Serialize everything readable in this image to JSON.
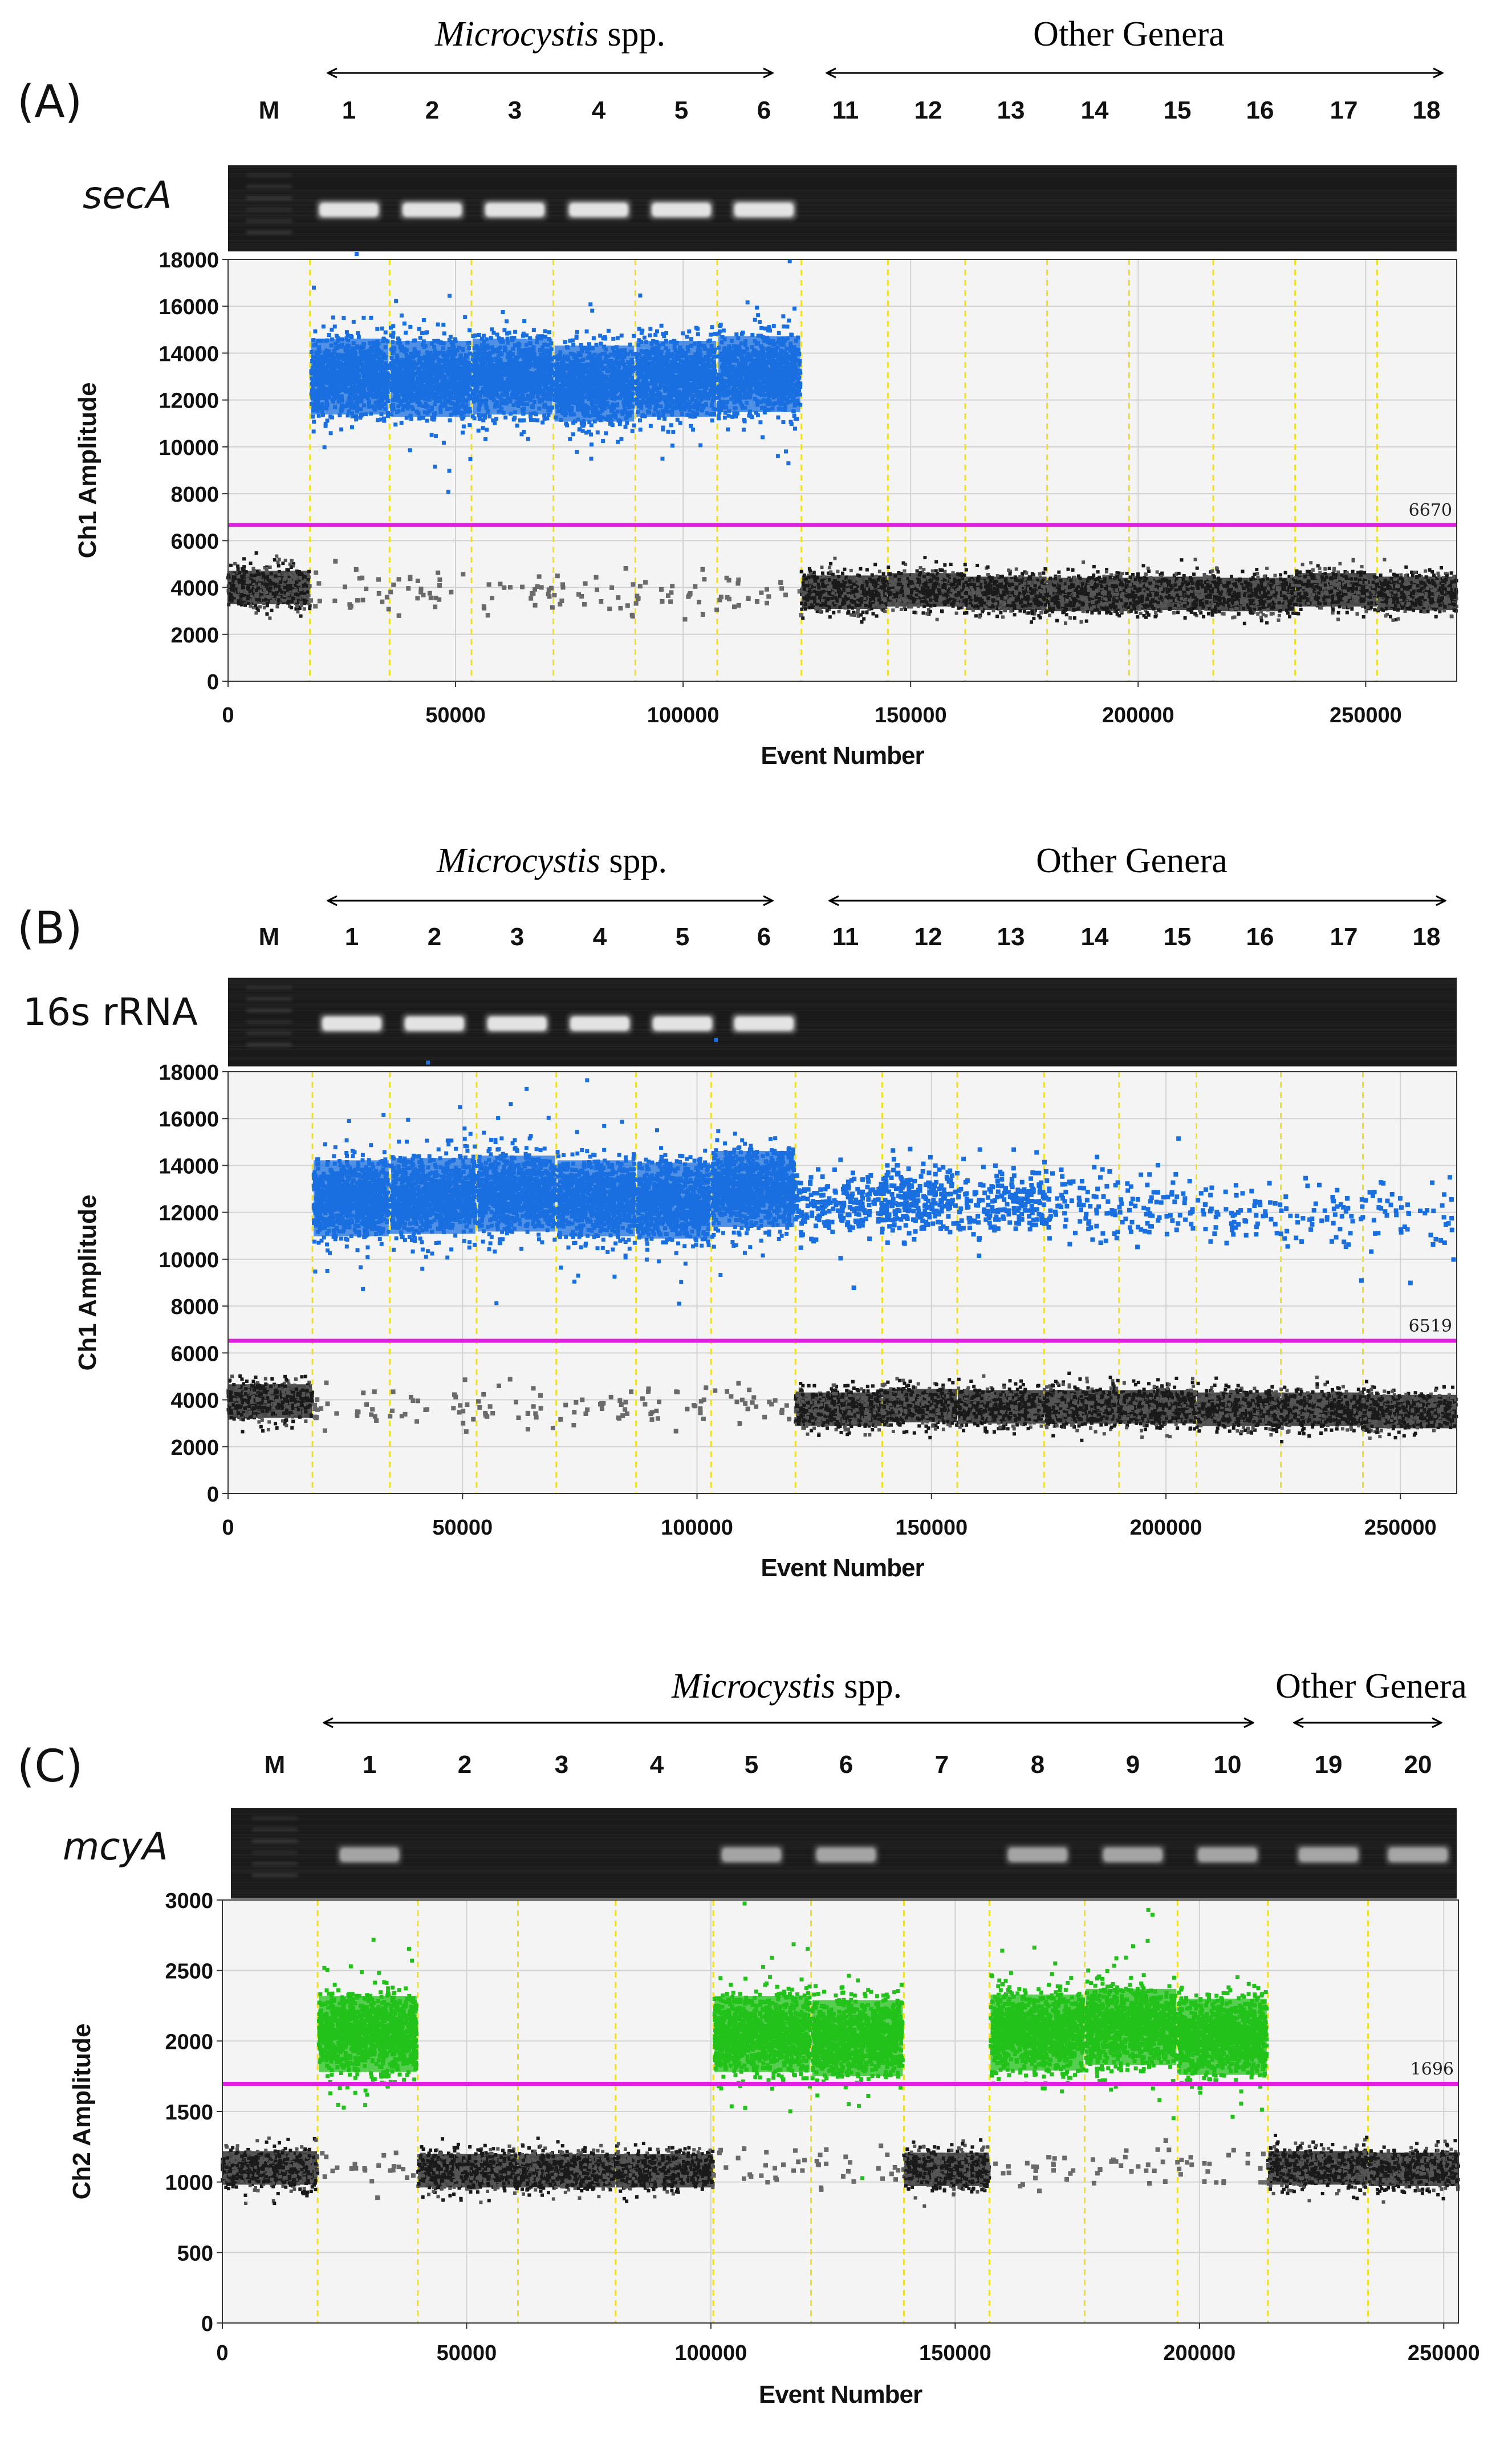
{
  "figure": {
    "panels": [
      {
        "id": "A",
        "label": "(A)",
        "gene": "secA",
        "gene_italic": true,
        "group_left": {
          "name": "Microcystis",
          "suffix": " spp."
        },
        "group_right": {
          "name": "Other Genera"
        },
        "lanes": [
          "M",
          "1",
          "2",
          "3",
          "4",
          "5",
          "6",
          "11",
          "12",
          "13",
          "14",
          "15",
          "16",
          "17",
          "18"
        ],
        "gel_bands": [
          false,
          true,
          true,
          true,
          true,
          true,
          true,
          false,
          false,
          false,
          false,
          false,
          false,
          false,
          false
        ],
        "band_strength": [
          0,
          1,
          1,
          1,
          1,
          1,
          1.2,
          0,
          0,
          0,
          0,
          0,
          0,
          0,
          0
        ]
      },
      {
        "id": "B",
        "label": "(B)",
        "gene": "16s rRNA",
        "gene_italic": false,
        "group_left": {
          "name": "Microcystis",
          "suffix": " spp."
        },
        "group_right": {
          "name": "Other Genera"
        },
        "lanes": [
          "M",
          "1",
          "2",
          "3",
          "4",
          "5",
          "6",
          "11",
          "12",
          "13",
          "14",
          "15",
          "16",
          "17",
          "18"
        ],
        "gel_bands": [
          false,
          true,
          true,
          true,
          true,
          true,
          true,
          false,
          false,
          false,
          false,
          false,
          false,
          false,
          false
        ],
        "band_strength": [
          0,
          1,
          1,
          1,
          1,
          1,
          1.2,
          0,
          0,
          0,
          0,
          0,
          0,
          0,
          0
        ]
      },
      {
        "id": "C",
        "label": "(C)",
        "gene": "mcyA",
        "gene_italic": true,
        "group_left": {
          "name": "Microcystis",
          "suffix": " spp."
        },
        "group_right": {
          "name": "Other Genera"
        },
        "lanes": [
          "M",
          "1",
          "2",
          "3",
          "4",
          "5",
          "6",
          "7",
          "8",
          "9",
          "10",
          "19",
          "20"
        ],
        "gel_bands": [
          false,
          true,
          false,
          false,
          false,
          true,
          true,
          false,
          true,
          true,
          true,
          true,
          true
        ],
        "band_strength": [
          0,
          0.7,
          0,
          0,
          0,
          0.7,
          0.7,
          0,
          0.7,
          0.7,
          0.7,
          0.8,
          0.8
        ]
      }
    ]
  },
  "chart_data": [
    {
      "type": "scatter",
      "panel": "A",
      "xlabel": "Event Number",
      "ylabel": "Ch1 Amplitude",
      "xlim": [
        0,
        270000
      ],
      "ylim": [
        0,
        18000
      ],
      "xticks": [
        0,
        50000,
        100000,
        150000,
        200000,
        250000
      ],
      "yticks": [
        0,
        2000,
        4000,
        6000,
        8000,
        10000,
        12000,
        14000,
        16000,
        18000
      ],
      "threshold": 6670,
      "threshold_label": "6670",
      "positive_color": "#1a6fe0",
      "negative_color": "#222222",
      "threshold_color": "#e020e0",
      "well_boundaries": [
        18000,
        35500,
        53500,
        71500,
        89500,
        107500,
        126000,
        145000,
        162000,
        180000,
        198000,
        216500,
        234500,
        252500,
        270000
      ],
      "wells": [
        {
          "start": 0,
          "end": 18000,
          "positive": false,
          "pos_level": 0,
          "neg_level": 4000
        },
        {
          "start": 18000,
          "end": 35500,
          "positive": true,
          "pos_level": 13000,
          "neg_level": 3700
        },
        {
          "start": 35500,
          "end": 53500,
          "positive": true,
          "pos_level": 12900,
          "neg_level": 3700
        },
        {
          "start": 53500,
          "end": 71500,
          "positive": true,
          "pos_level": 13000,
          "neg_level": 3700
        },
        {
          "start": 71500,
          "end": 89500,
          "positive": true,
          "pos_level": 12700,
          "neg_level": 3700
        },
        {
          "start": 89500,
          "end": 107500,
          "positive": true,
          "pos_level": 12900,
          "neg_level": 3700
        },
        {
          "start": 107500,
          "end": 126000,
          "positive": true,
          "pos_level": 13100,
          "neg_level": 3700
        },
        {
          "start": 126000,
          "end": 145000,
          "positive": false,
          "pos_level": 0,
          "neg_level": 3800
        },
        {
          "start": 145000,
          "end": 162000,
          "positive": false,
          "pos_level": 0,
          "neg_level": 3900
        },
        {
          "start": 162000,
          "end": 180000,
          "positive": false,
          "pos_level": 0,
          "neg_level": 3750
        },
        {
          "start": 180000,
          "end": 198000,
          "positive": false,
          "pos_level": 0,
          "neg_level": 3700
        },
        {
          "start": 198000,
          "end": 216500,
          "positive": false,
          "pos_level": 0,
          "neg_level": 3750
        },
        {
          "start": 216500,
          "end": 234500,
          "positive": false,
          "pos_level": 0,
          "neg_level": 3700
        },
        {
          "start": 234500,
          "end": 252500,
          "positive": false,
          "pos_level": 0,
          "neg_level": 3900
        },
        {
          "start": 252500,
          "end": 270000,
          "positive": false,
          "pos_level": 0,
          "neg_level": 3750
        }
      ]
    },
    {
      "type": "scatter",
      "panel": "B",
      "xlabel": "Event Number",
      "ylabel": "Ch1 Amplitude",
      "xlim": [
        0,
        262000
      ],
      "ylim": [
        0,
        18000
      ],
      "xticks": [
        0,
        50000,
        100000,
        150000,
        200000,
        250000
      ],
      "yticks": [
        0,
        2000,
        4000,
        6000,
        8000,
        10000,
        12000,
        14000,
        16000,
        18000
      ],
      "threshold": 6519,
      "threshold_label": "6519",
      "positive_color": "#1a6fe0",
      "negative_color": "#222222",
      "threshold_color": "#e020e0",
      "well_boundaries": [
        18000,
        34500,
        53000,
        70000,
        87000,
        103000,
        121000,
        139500,
        155500,
        174000,
        190000,
        206500,
        224500,
        242000,
        262000
      ],
      "wells": [
        {
          "start": 0,
          "end": 18000,
          "positive": false,
          "pos_level": 0,
          "neg_level": 3950,
          "sparse_pos": 0
        },
        {
          "start": 18000,
          "end": 34500,
          "positive": true,
          "pos_level": 12600,
          "neg_level": 3600,
          "sparse_pos": 0
        },
        {
          "start": 34500,
          "end": 53000,
          "positive": true,
          "pos_level": 12700,
          "neg_level": 3600,
          "sparse_pos": 0
        },
        {
          "start": 53000,
          "end": 70000,
          "positive": true,
          "pos_level": 12800,
          "neg_level": 3600,
          "sparse_pos": 0
        },
        {
          "start": 70000,
          "end": 87000,
          "positive": true,
          "pos_level": 12600,
          "neg_level": 3700,
          "sparse_pos": 0
        },
        {
          "start": 87000,
          "end": 103000,
          "positive": true,
          "pos_level": 12500,
          "neg_level": 3700,
          "sparse_pos": 0
        },
        {
          "start": 103000,
          "end": 121000,
          "positive": true,
          "pos_level": 13000,
          "neg_level": 3600,
          "sparse_pos": 0
        },
        {
          "start": 121000,
          "end": 139500,
          "positive": false,
          "pos_level": 12300,
          "neg_level": 3600,
          "sparse_pos": 220
        },
        {
          "start": 139500,
          "end": 155500,
          "positive": false,
          "pos_level": 12500,
          "neg_level": 3750,
          "sparse_pos": 260
        },
        {
          "start": 155500,
          "end": 174000,
          "positive": false,
          "pos_level": 12400,
          "neg_level": 3700,
          "sparse_pos": 200
        },
        {
          "start": 174000,
          "end": 190000,
          "positive": false,
          "pos_level": 12200,
          "neg_level": 3700,
          "sparse_pos": 90
        },
        {
          "start": 190000,
          "end": 206500,
          "positive": false,
          "pos_level": 12100,
          "neg_level": 3700,
          "sparse_pos": 70
        },
        {
          "start": 206500,
          "end": 224500,
          "positive": false,
          "pos_level": 12000,
          "neg_level": 3600,
          "sparse_pos": 60
        },
        {
          "start": 224500,
          "end": 242000,
          "positive": false,
          "pos_level": 11900,
          "neg_level": 3600,
          "sparse_pos": 55
        },
        {
          "start": 242000,
          "end": 262000,
          "positive": false,
          "pos_level": 11900,
          "neg_level": 3500,
          "sparse_pos": 50
        }
      ]
    },
    {
      "type": "scatter",
      "panel": "C",
      "xlabel": "Event Number",
      "ylabel": "Ch2 Amplitude",
      "xlim": [
        0,
        253000
      ],
      "ylim": [
        0,
        3000
      ],
      "xticks": [
        0,
        50000,
        100000,
        150000,
        200000,
        250000
      ],
      "yticks": [
        0,
        500,
        1000,
        1500,
        2000,
        2500,
        3000
      ],
      "threshold": 1696,
      "threshold_label": "1696",
      "positive_color": "#22c21a",
      "negative_color": "#222222",
      "threshold_color": "#e020e0",
      "well_boundaries": [
        19500,
        40000,
        60500,
        80500,
        100500,
        120500,
        139500,
        157000,
        176500,
        195500,
        214000,
        234500,
        253000
      ],
      "wells": [
        {
          "start": 0,
          "end": 19500,
          "positive": false,
          "pos_level": 0,
          "neg_level": 1100
        },
        {
          "start": 19500,
          "end": 40000,
          "positive": true,
          "pos_level": 2050,
          "neg_level": 1090
        },
        {
          "start": 40000,
          "end": 60500,
          "positive": false,
          "pos_level": 0,
          "neg_level": 1080
        },
        {
          "start": 60500,
          "end": 80500,
          "positive": false,
          "pos_level": 0,
          "neg_level": 1080
        },
        {
          "start": 80500,
          "end": 100500,
          "positive": false,
          "pos_level": 0,
          "neg_level": 1080
        },
        {
          "start": 100500,
          "end": 120500,
          "positive": true,
          "pos_level": 2050,
          "neg_level": 1100
        },
        {
          "start": 120500,
          "end": 139500,
          "positive": true,
          "pos_level": 2020,
          "neg_level": 1090
        },
        {
          "start": 139500,
          "end": 157000,
          "positive": false,
          "pos_level": 0,
          "neg_level": 1090
        },
        {
          "start": 157000,
          "end": 176500,
          "positive": true,
          "pos_level": 2060,
          "neg_level": 1110
        },
        {
          "start": 176500,
          "end": 195500,
          "positive": true,
          "pos_level": 2100,
          "neg_level": 1120
        },
        {
          "start": 195500,
          "end": 214000,
          "positive": true,
          "pos_level": 2030,
          "neg_level": 1100
        },
        {
          "start": 214000,
          "end": 234500,
          "positive": false,
          "pos_level": 0,
          "neg_level": 1100
        },
        {
          "start": 234500,
          "end": 253000,
          "positive": false,
          "pos_level": 0,
          "neg_level": 1090
        }
      ]
    }
  ]
}
